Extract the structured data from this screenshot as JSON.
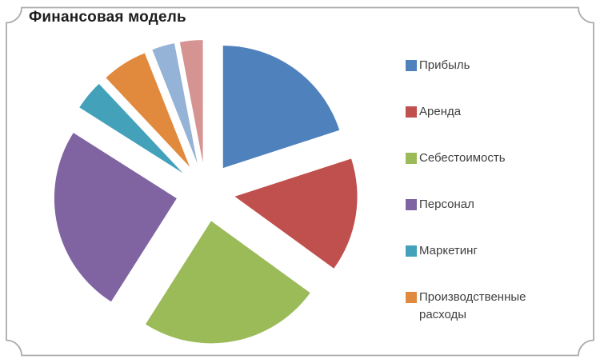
{
  "page": {
    "background_color": "#FFFFFF",
    "frame_border_color": "#ABABAB"
  },
  "chart_data": {
    "type": "pie",
    "title": "Финансовая модель",
    "exploded": true,
    "start_angle_deg": 0,
    "direction": "clockwise",
    "legend_position": "right",
    "grid": false,
    "slices": [
      {
        "label": "Прибыль",
        "value": 20,
        "color": "#4F81BD"
      },
      {
        "label": "Аренда",
        "value": 15,
        "color": "#C0504D"
      },
      {
        "label": "Себестоимость",
        "value": 24,
        "color": "#9BBB59"
      },
      {
        "label": "Персонал",
        "value": 25,
        "color": "#8064A2"
      },
      {
        "label": "Маркетинг",
        "value": 4,
        "color": "#43A2BA"
      },
      {
        "label": "Производственные расходы",
        "value": 6,
        "color": "#E18A3E"
      },
      {
        "label": "",
        "value": 3,
        "color": "#95B3D7"
      },
      {
        "label": "",
        "value": 3,
        "color": "#D59492"
      }
    ],
    "legend_visible_labels": [
      "Прибыль",
      "Аренда",
      "Себестоимость",
      "Персонал",
      "Маркетинг",
      "Производственные расходы"
    ]
  }
}
